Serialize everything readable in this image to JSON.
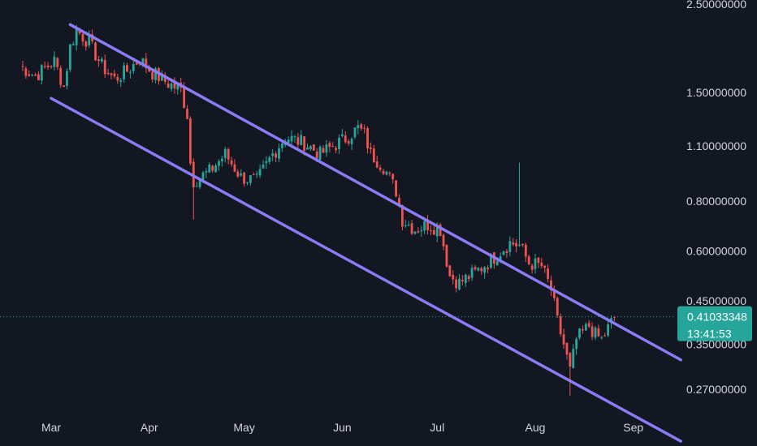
{
  "chart_data": {
    "type": "candlestick",
    "y_scale": "log",
    "ylim": [
      0.24,
      2.56
    ],
    "x_range": [
      "2024-02-20",
      "2024-09-16"
    ],
    "y_ticks": [
      {
        "value": 2.5,
        "label": "2.50000000"
      },
      {
        "value": 1.5,
        "label": "1.50000000"
      },
      {
        "value": 1.1,
        "label": "1.10000000"
      },
      {
        "value": 0.8,
        "label": "0.80000000"
      },
      {
        "value": 0.6,
        "label": "0.60000000"
      },
      {
        "value": 0.45,
        "label": "0.45000000"
      },
      {
        "value": 0.35,
        "label": "0.35000000"
      },
      {
        "value": 0.27,
        "label": "0.27000000"
      }
    ],
    "x_ticks": [
      {
        "date": "2024-03-01",
        "label": "Mar"
      },
      {
        "date": "2024-04-01",
        "label": "Apr"
      },
      {
        "date": "2024-05-01",
        "label": "May"
      },
      {
        "date": "2024-06-01",
        "label": "Jun"
      },
      {
        "date": "2024-07-01",
        "label": "Jul"
      },
      {
        "date": "2024-08-01",
        "label": "Aug"
      },
      {
        "date": "2024-09-01",
        "label": "Sep"
      }
    ],
    "price_tag": {
      "value": 0.41033348,
      "label": "0.41033348",
      "countdown": "13:41:53"
    },
    "colors": {
      "up": "#26a69a",
      "down": "#ef5350",
      "channel": "#8b7cf6",
      "tag": "#26a69a",
      "background": "#131722",
      "text": "#d1d4dc"
    },
    "channel": {
      "upper": {
        "start": {
          "date": "2024-03-07",
          "price": 2.22
        },
        "end": {
          "date": "2024-09-16",
          "price": 0.32
        }
      },
      "lower": {
        "start": {
          "date": "2024-03-01",
          "price": 1.45
        },
        "end": {
          "date": "2024-09-16",
          "price": 0.2
        }
      }
    },
    "anchors": [
      [
        "2024-02-20",
        1.75
      ],
      [
        "2024-02-25",
        1.65
      ],
      [
        "2024-03-02",
        1.8
      ],
      [
        "2024-03-05",
        1.55
      ],
      [
        "2024-03-07",
        1.95
      ],
      [
        "2024-03-09",
        2.15
      ],
      [
        "2024-03-13",
        2.0
      ],
      [
        "2024-03-17",
        1.75
      ],
      [
        "2024-03-21",
        1.62
      ],
      [
        "2024-03-25",
        1.7
      ],
      [
        "2024-03-29",
        1.82
      ],
      [
        "2024-04-02",
        1.68
      ],
      [
        "2024-04-07",
        1.58
      ],
      [
        "2024-04-11",
        1.52
      ],
      [
        "2024-04-13",
        1.32
      ],
      [
        "2024-04-14",
        1.0
      ],
      [
        "2024-04-15",
        0.9
      ],
      [
        "2024-04-20",
        0.95
      ],
      [
        "2024-04-25",
        1.05
      ],
      [
        "2024-04-30",
        0.92
      ],
      [
        "2024-05-05",
        0.9
      ],
      [
        "2024-05-10",
        1.05
      ],
      [
        "2024-05-14",
        1.16
      ],
      [
        "2024-05-20",
        1.12
      ],
      [
        "2024-05-25",
        1.05
      ],
      [
        "2024-05-29",
        1.1
      ],
      [
        "2024-06-02",
        1.15
      ],
      [
        "2024-06-06",
        1.22
      ],
      [
        "2024-06-08",
        1.18
      ],
      [
        "2024-06-10",
        1.05
      ],
      [
        "2024-06-14",
        0.98
      ],
      [
        "2024-06-18",
        0.85
      ],
      [
        "2024-06-20",
        0.72
      ],
      [
        "2024-06-24",
        0.68
      ],
      [
        "2024-06-28",
        0.7
      ],
      [
        "2024-07-02",
        0.68
      ],
      [
        "2024-07-05",
        0.52
      ],
      [
        "2024-07-08",
        0.5
      ],
      [
        "2024-07-13",
        0.53
      ],
      [
        "2024-07-18",
        0.57
      ],
      [
        "2024-07-24",
        0.63
      ],
      [
        "2024-07-27",
        0.62
      ],
      [
        "2024-07-30",
        0.56
      ],
      [
        "2024-08-03",
        0.55
      ],
      [
        "2024-08-06",
        0.48
      ],
      [
        "2024-08-08",
        0.4
      ],
      [
        "2024-08-10",
        0.35
      ],
      [
        "2024-08-12",
        0.3
      ],
      [
        "2024-08-14",
        0.36
      ],
      [
        "2024-08-18",
        0.39
      ],
      [
        "2024-08-20",
        0.37
      ],
      [
        "2024-08-22",
        0.36
      ],
      [
        "2024-08-26",
        0.41
      ]
    ],
    "spikes": [
      {
        "date": "2024-07-27",
        "high": 1.0
      },
      {
        "date": "2024-08-12",
        "low": 0.26
      },
      {
        "date": "2024-04-15",
        "low": 0.72
      }
    ]
  }
}
